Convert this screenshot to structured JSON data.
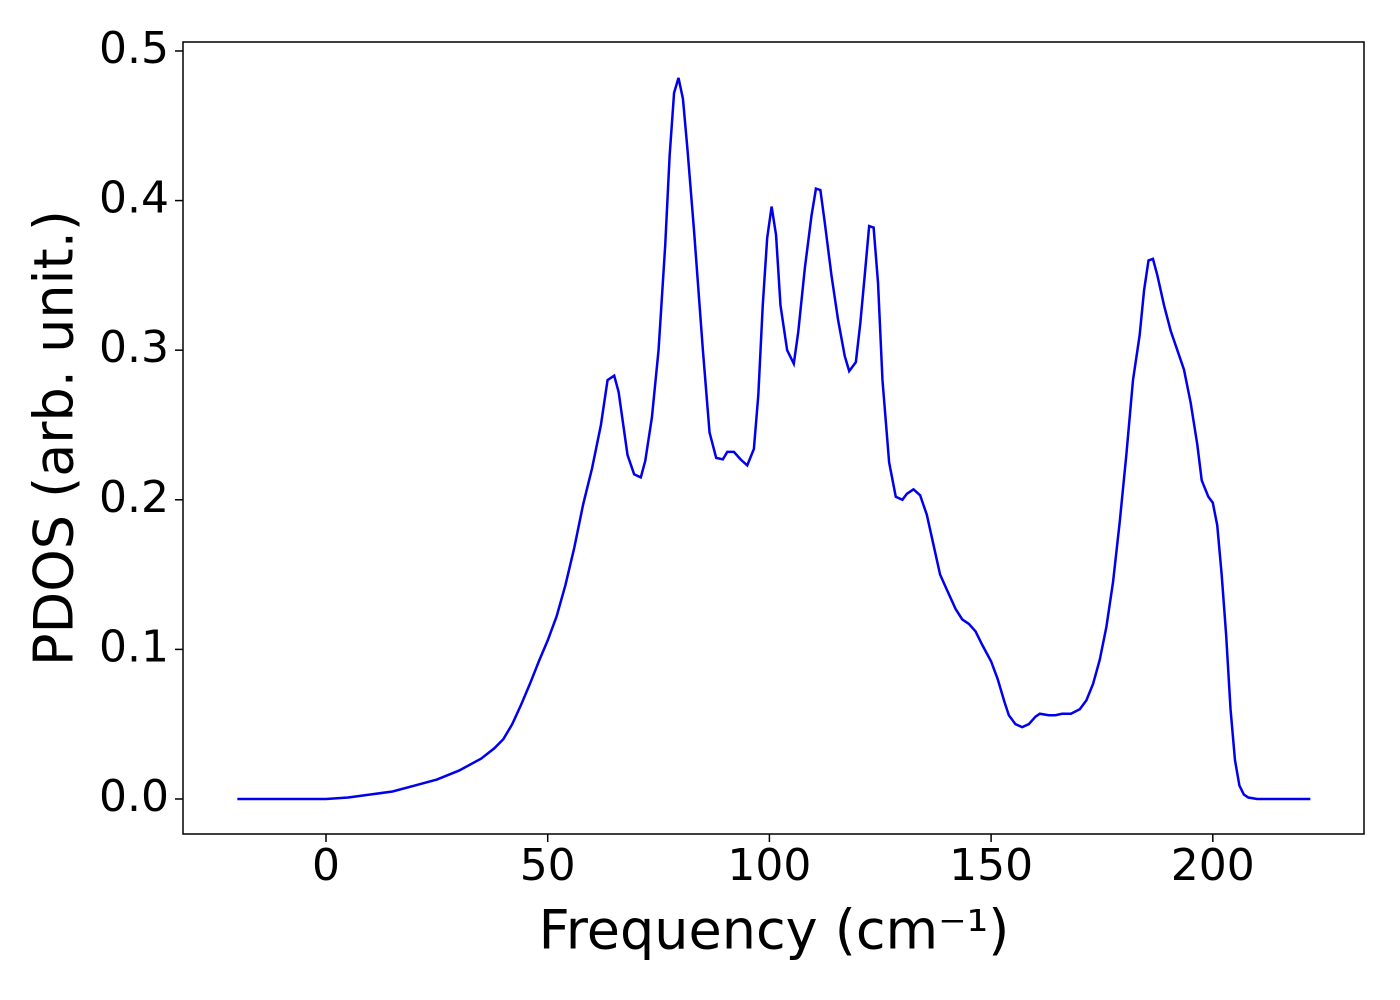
{
  "chart_data": {
    "type": "line",
    "xlabel": "Frequency (cm⁻¹)",
    "ylabel": "PDOS (arb. unit.)",
    "xlim": [
      -32.25,
      234.1
    ],
    "ylim": [
      -0.0234,
      0.506
    ],
    "xticks": [
      0,
      50,
      100,
      150,
      200
    ],
    "yticks": [
      {
        "value": 0,
        "label": "0.0"
      },
      0.1,
      0.2,
      0.3,
      0.4,
      0.5
    ],
    "x": [
      -20,
      0,
      5,
      10,
      15,
      20,
      25,
      30,
      35,
      38,
      40,
      42,
      44,
      46,
      48,
      50,
      52,
      54,
      56,
      58,
      60,
      62,
      63.5,
      65,
      66,
      68,
      69.5,
      71,
      72,
      73.5,
      75,
      76.5,
      77.5,
      78.5,
      79.5,
      80.5,
      81.5,
      83,
      85,
      86.5,
      88,
      89.5,
      90.5,
      92,
      93.5,
      95,
      96.5,
      97.5,
      98.5,
      99.5,
      100.5,
      101.5,
      102.5,
      104,
      105.5,
      106.5,
      108,
      109.5,
      110.5,
      111.5,
      112.5,
      114,
      115.5,
      117,
      118,
      119.5,
      120.5,
      121.5,
      122.5,
      123.5,
      124.5,
      125.5,
      127,
      128.5,
      130,
      131,
      132.5,
      134,
      135.5,
      137,
      138.5,
      140,
      142,
      143.5,
      145,
      146.5,
      148,
      150,
      151.5,
      153,
      154,
      155.5,
      157,
      158.5,
      160,
      161,
      163,
      164.5,
      166,
      168,
      170,
      171.5,
      173,
      174.5,
      176,
      177.5,
      179,
      180.5,
      182,
      183.5,
      184.5,
      185.5,
      186.5,
      187.5,
      189,
      190.5,
      192,
      193.5,
      195,
      196.5,
      197.5,
      199,
      200,
      201,
      202,
      203,
      204,
      205,
      206,
      207,
      208,
      210,
      222
    ],
    "series": [
      {
        "color": "#0000ee",
        "values": [
          0,
          0,
          0.001,
          0.003,
          0.005,
          0.009,
          0.013,
          0.019,
          0.027,
          0.034,
          0.04,
          0.05,
          0.063,
          0.077,
          0.092,
          0.106,
          0.122,
          0.143,
          0.168,
          0.197,
          0.221,
          0.25,
          0.28,
          0.283,
          0.272,
          0.23,
          0.217,
          0.215,
          0.226,
          0.255,
          0.3,
          0.37,
          0.43,
          0.472,
          0.482,
          0.468,
          0.435,
          0.38,
          0.3,
          0.245,
          0.228,
          0.227,
          0.232,
          0.232,
          0.227,
          0.223,
          0.234,
          0.27,
          0.33,
          0.375,
          0.396,
          0.377,
          0.33,
          0.3,
          0.291,
          0.312,
          0.355,
          0.39,
          0.408,
          0.407,
          0.385,
          0.35,
          0.32,
          0.296,
          0.286,
          0.292,
          0.318,
          0.35,
          0.383,
          0.382,
          0.345,
          0.28,
          0.225,
          0.202,
          0.2,
          0.204,
          0.207,
          0.203,
          0.19,
          0.17,
          0.15,
          0.14,
          0.127,
          0.12,
          0.117,
          0.112,
          0.103,
          0.092,
          0.08,
          0.065,
          0.056,
          0.05,
          0.048,
          0.05,
          0.055,
          0.057,
          0.056,
          0.056,
          0.057,
          0.057,
          0.06,
          0.066,
          0.077,
          0.093,
          0.115,
          0.145,
          0.185,
          0.23,
          0.28,
          0.31,
          0.34,
          0.36,
          0.361,
          0.35,
          0.33,
          0.313,
          0.3,
          0.287,
          0.265,
          0.237,
          0.213,
          0.202,
          0.198,
          0.183,
          0.15,
          0.11,
          0.06,
          0.026,
          0.009,
          0.003,
          0.001,
          0,
          0
        ]
      }
    ]
  }
}
